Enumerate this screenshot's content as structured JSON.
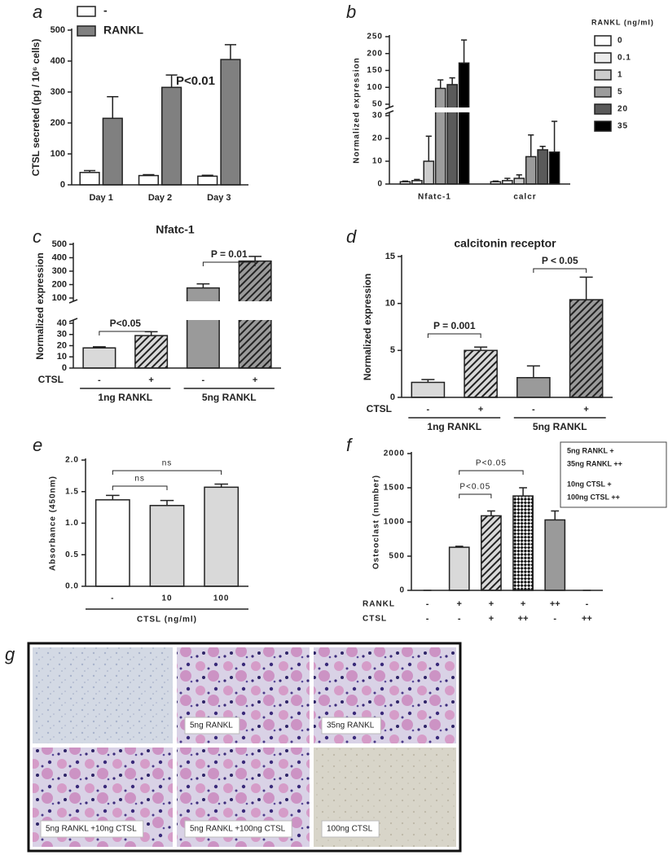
{
  "chart_data": [
    {
      "type": "bar",
      "panel": "a",
      "ylabel": "CTSL secreted (pg / 10⁶ cells)",
      "categories": [
        "Day 1",
        "Day 2",
        "Day 3"
      ],
      "series": [
        {
          "name": "-",
          "color": "#ffffff",
          "values": [
            40,
            30,
            28
          ],
          "errors": [
            6,
            3,
            3
          ]
        },
        {
          "name": "RANKL",
          "color": "#808080",
          "values": [
            215,
            315,
            405
          ],
          "errors": [
            70,
            40,
            48
          ]
        }
      ],
      "ylim": [
        0,
        500
      ],
      "yticks": [
        0,
        100,
        200,
        300,
        400,
        500
      ],
      "annotations": [
        "P<0.01"
      ]
    },
    {
      "type": "bar",
      "panel": "b",
      "ylabel": "Normalized expression",
      "legend_title": "RANKL (ng/ml)",
      "categories": [
        "Nfatc-1",
        "calcr"
      ],
      "series": [
        {
          "name": "0",
          "color": "#ffffff",
          "values": [
            1,
            1
          ],
          "errors": [
            0.3,
            0.3
          ]
        },
        {
          "name": "0.1",
          "color": "#ececec",
          "values": [
            1.5,
            1.5
          ],
          "errors": [
            0.5,
            1
          ]
        },
        {
          "name": "1",
          "color": "#cccccc",
          "values": [
            10,
            2.5
          ],
          "errors": [
            11,
            1.5
          ]
        },
        {
          "name": "5",
          "color": "#9c9c9c",
          "values": [
            97,
            12
          ],
          "errors": [
            25,
            9.5
          ]
        },
        {
          "name": "20",
          "color": "#5a5a5a",
          "values": [
            108,
            15
          ],
          "errors": [
            20,
            1.5
          ]
        },
        {
          "name": "35",
          "color": "#000000",
          "values": [
            172,
            14
          ],
          "errors": [
            68,
            13.5
          ]
        }
      ],
      "ylim": [
        0,
        250
      ],
      "axis_break": [
        30,
        50
      ],
      "yticks": [
        0,
        10,
        20,
        30,
        50,
        100,
        150,
        200,
        250
      ]
    },
    {
      "type": "bar",
      "panel": "c",
      "title": "Nfatc-1",
      "ylabel": "Normalized expression",
      "categories": [
        "-",
        "+",
        "-",
        "+"
      ],
      "row_label": "CTSL",
      "groups": [
        "1ng RANKL",
        "5ng RANKL"
      ],
      "values": [
        18,
        29,
        175,
        375
      ],
      "errors": [
        1,
        3.5,
        30,
        35
      ],
      "colors": [
        "#d9d9d9",
        "#d9d9d9",
        "#9a9a9a",
        "#9a9a9a"
      ],
      "patterns": [
        "solid",
        "hatch",
        "solid",
        "hatch"
      ],
      "ylim": [
        0,
        500
      ],
      "axis_break": [
        40,
        100
      ],
      "yticks": [
        0,
        10,
        20,
        30,
        40,
        100,
        200,
        300,
        400,
        500
      ],
      "annotations": [
        "P<0.05",
        "P = 0.01"
      ]
    },
    {
      "type": "bar",
      "panel": "d",
      "title": "calcitonin receptor",
      "ylabel": "Normalized expression",
      "categories": [
        "-",
        "+",
        "-",
        "+"
      ],
      "row_label": "CTSL",
      "groups": [
        "1ng RANKL",
        "5ng RANKL"
      ],
      "values": [
        1.6,
        5.0,
        2.1,
        10.4
      ],
      "errors": [
        0.3,
        0.35,
        1.25,
        2.4
      ],
      "colors": [
        "#d9d9d9",
        "#d9d9d9",
        "#9a9a9a",
        "#9a9a9a"
      ],
      "patterns": [
        "solid",
        "hatch",
        "solid",
        "hatch"
      ],
      "ylim": [
        0,
        15
      ],
      "yticks": [
        0,
        5,
        10,
        15
      ],
      "annotations": [
        "P = 0.001",
        "P < 0.05"
      ]
    },
    {
      "type": "bar",
      "panel": "e",
      "ylabel": "Absorbance (450nm)",
      "xlabel": "CTSL (ng/ml)",
      "categories": [
        "-",
        "10",
        "100"
      ],
      "values": [
        1.37,
        1.28,
        1.57
      ],
      "errors": [
        0.07,
        0.08,
        0.05
      ],
      "colors": [
        "#ffffff",
        "#d9d9d9",
        "#d9d9d9"
      ],
      "patterns": [
        "solid",
        "solid",
        "solid"
      ],
      "ylim": [
        0,
        2
      ],
      "yticks": [
        {
          "value": 0,
          "label": "0.0"
        },
        0.5,
        {
          "value": 1,
          "label": "1.0"
        },
        1.5,
        {
          "value": 2,
          "label": "2.0"
        }
      ],
      "annotations": [
        "ns",
        "ns"
      ]
    },
    {
      "type": "bar",
      "panel": "f",
      "ylabel": "Osteoclast (number)",
      "rows": [
        {
          "name": "RANKL",
          "labels": [
            "-",
            "+",
            "+",
            "+",
            "++",
            "-"
          ]
        },
        {
          "name": "CTSL",
          "labels": [
            "-",
            "-",
            "+",
            "++",
            "-",
            "++"
          ]
        }
      ],
      "values": [
        0,
        630,
        1090,
        1380,
        1030,
        0
      ],
      "errors": [
        0,
        15,
        70,
        120,
        130,
        0
      ],
      "colors": [
        "#d9d9d9",
        "#d9d9d9",
        "#d9d9d9",
        "#ffffff",
        "#9a9a9a",
        "#9a9a9a"
      ],
      "patterns": [
        "solid",
        "solid",
        "hatch",
        "crosshatch",
        "solid",
        "solid"
      ],
      "ylim": [
        0,
        2000
      ],
      "yticks": [
        0,
        500,
        1000,
        1500,
        2000
      ],
      "annotations": [
        "P<0.05",
        "P<0.05"
      ],
      "notes": [
        "5ng RANKL  +",
        "35ng RANKL ++",
        "10ng CTSL  +",
        "100ng CTSL ++"
      ]
    }
  ],
  "figure_g": {
    "panel": "g",
    "captions": [
      "5ng RANKL",
      "35ng RANKL",
      "5ng RANKL +10ng CTSL",
      "5ng RANKL +100ng CTSL",
      "100ng CTSL"
    ]
  }
}
